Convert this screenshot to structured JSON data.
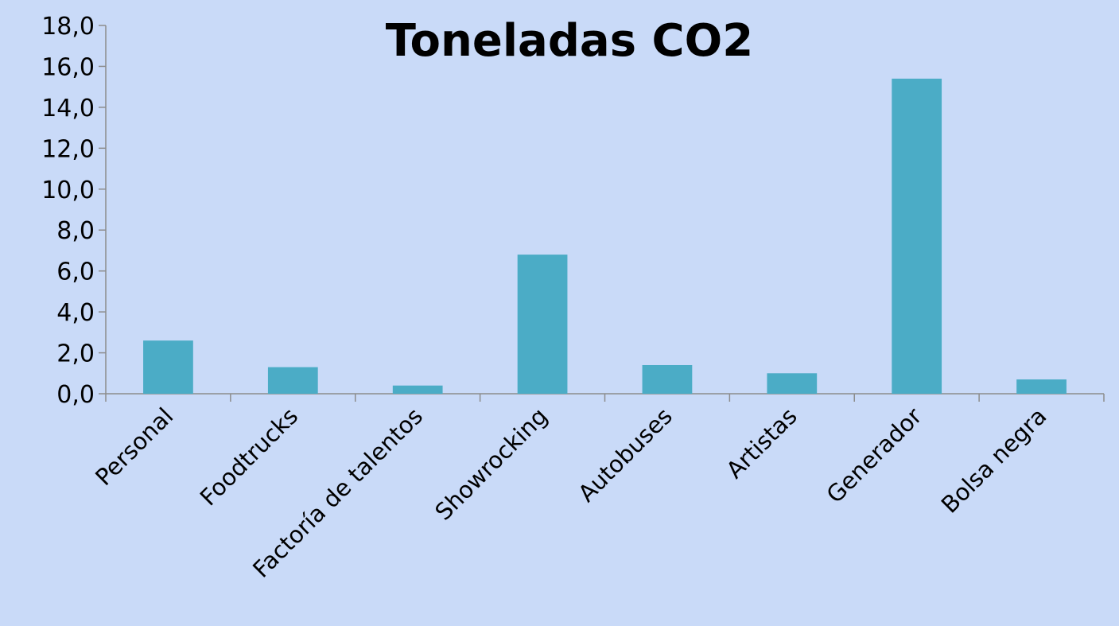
{
  "chart_data": {
    "type": "bar",
    "title": "Toneladas CO2",
    "xlabel": "",
    "ylabel": "",
    "categories": [
      "Personal",
      "Foodtrucks",
      "Factoría de talentos",
      "Showrocking",
      "Autobuses",
      "Artistas",
      "Generador",
      "Bolsa negra"
    ],
    "values": [
      2.6,
      1.3,
      0.4,
      6.8,
      1.4,
      1.0,
      15.4,
      0.7
    ],
    "ylim": [
      0,
      18
    ],
    "yticks": [
      0,
      2,
      4,
      6,
      8,
      10,
      12,
      14,
      16,
      18
    ],
    "ytick_labels": [
      "0,0",
      "2,0",
      "4,0",
      "6,0",
      "8,0",
      "10,0",
      "12,0",
      "14,0",
      "16,0",
      "18,0"
    ],
    "grid": false,
    "legend": "none",
    "colors": {
      "background": "#c9daf8",
      "bar": "#4bacc6",
      "axis": "#8c8c8c",
      "text": "#000000"
    }
  }
}
